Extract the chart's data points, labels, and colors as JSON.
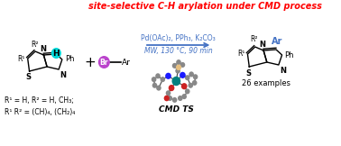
{
  "title": "site-selective C-H arylation under CMD process",
  "title_color": "#ff0000",
  "title_fontsize": 7.0,
  "bg_color": "#ffffff",
  "reaction_arrow_color": "#4472c4",
  "conditions_line1": "Pd(OAc)₂, PPh₃, K₂CO₃",
  "conditions_line2": "MW, 130 °C, 90 min",
  "conditions_color": "#4472c4",
  "conditions_fontsize": 5.5,
  "plus_color": "#000000",
  "examples_text": "26 examples",
  "examples_fontsize": 6.0,
  "footnote_line1": "R¹ = H, R² = H, CH₃;",
  "footnote_line2": "R¹ R² = (CH)₄, (CH₂)₄",
  "footnote_fontsize": 5.5,
  "footnote_color": "#000000",
  "cmd_ts_label": "CMD TS",
  "cmd_ts_fontsize": 6.5,
  "H_bubble_color": "#00d8d8",
  "Br_bubble_color": "#bb44cc",
  "Ar_color": "#4472c4",
  "atom_N_color": "#1a1aff",
  "atom_O_color": "#cc2222",
  "atom_Pd_color": "#008080",
  "atom_gray": "#888888",
  "atom_peach": "#e8c080",
  "bond_color": "#444444"
}
